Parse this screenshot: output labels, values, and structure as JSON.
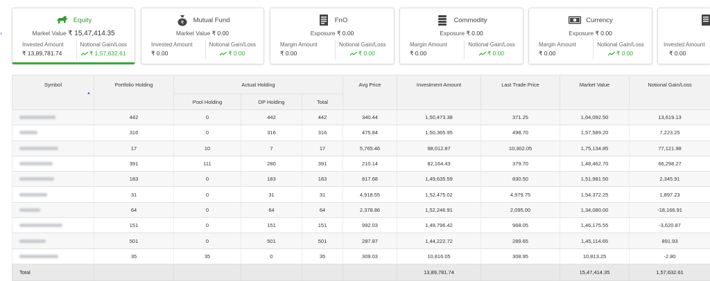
{
  "cards": [
    {
      "key": "equity",
      "title": "Equity",
      "sub_label": "Market Value",
      "sub_value": "₹ 15,47,414.35",
      "left_label": "Invested Amount",
      "left_value": "₹ 13,89,781.74",
      "right_label": "Notional Gain/Loss",
      "right_value": "₹ 1,57,632.61",
      "icon": "bull-icon"
    },
    {
      "key": "mutual_fund",
      "title": "Mutual Fund",
      "sub_label": "Market Value",
      "sub_value": "₹ 0.00",
      "left_label": "Invested Amount",
      "left_value": "₹ 0.00",
      "right_label": "Notional Gain/Loss",
      "right_value": "₹ 0.00",
      "icon": "money-bag-icon"
    },
    {
      "key": "fno",
      "title": "FnO",
      "sub_label": "Exposure",
      "sub_value": "₹ 0.00",
      "left_label": "Margin Amount",
      "left_value": "₹ 0.00",
      "right_label": "Notional Gain/Loss",
      "right_value": "₹ 0.00",
      "icon": "document-icon"
    },
    {
      "key": "commodity",
      "title": "Commodity",
      "sub_label": "Exposure",
      "sub_value": "₹ 0.00",
      "left_label": "Margin Amount",
      "left_value": "₹ 0.00",
      "right_label": "Notional Gain/Loss",
      "right_value": "₹ 0.00",
      "icon": "coin-stack-icon"
    },
    {
      "key": "currency",
      "title": "Currency",
      "sub_label": "Exposure",
      "sub_value": "₹ 0.00",
      "left_label": "Margin Amount",
      "left_value": "₹ 0.00",
      "right_label": "Notional Gain/Loss",
      "right_value": "₹ 0.00",
      "icon": "banknote-icon"
    },
    {
      "key": "partial",
      "title": "",
      "sub_label": "",
      "sub_value": "",
      "left_label": "Invested Amount",
      "left_value": "₹ 0.00",
      "right_label": "",
      "right_value": "",
      "icon": "document-icon"
    }
  ],
  "colors": {
    "gain": "#27b127",
    "accent_green": "#2e9e2e",
    "sort_arrow": "#4a6cc7"
  },
  "table": {
    "headers": {
      "symbol": "Symbol",
      "portfolio_holding": "Portfolio Holding",
      "actual_holding": "Actual Holding",
      "pool_holding": "Pool Holding",
      "dp_holding": "DP Holding",
      "total": "Total",
      "avg_price": "Avg Price",
      "investment_amount": "Investment Amount",
      "last_trade_price": "Last Trade Price",
      "market_value": "Market Value",
      "notional_gain_loss": "Notional Gain/Loss"
    },
    "rows": [
      {
        "portfolio": "442",
        "pool": "0",
        "dp": "442",
        "total": "442",
        "avg": "340.44",
        "invest": "1,50,473.38",
        "ltp": "371.25",
        "mv": "1,64,092.50",
        "gain": "13,619.13"
      },
      {
        "portfolio": "316",
        "pool": "0",
        "dp": "316",
        "total": "316",
        "avg": "475.84",
        "invest": "1,50,365.95",
        "ltp": "498.70",
        "mv": "1,57,589.20",
        "gain": "7,223.25"
      },
      {
        "portfolio": "17",
        "pool": "10",
        "dp": "7",
        "total": "17",
        "avg": "5,765.46",
        "invest": "98,012.87",
        "ltp": "10,302.05",
        "mv": "1,75,134.85",
        "gain": "77,121.98"
      },
      {
        "portfolio": "391",
        "pool": "111",
        "dp": "280",
        "total": "391",
        "avg": "210.14",
        "invest": "82,164.43",
        "ltp": "379.70",
        "mv": "1,48,462.70",
        "gain": "66,298.27"
      },
      {
        "portfolio": "183",
        "pool": "0",
        "dp": "183",
        "total": "183",
        "avg": "817.68",
        "invest": "1,49,635.59",
        "ltp": "830.50",
        "mv": "1,51,981.50",
        "gain": "2,345.91"
      },
      {
        "portfolio": "31",
        "pool": "0",
        "dp": "31",
        "total": "31",
        "avg": "4,918.55",
        "invest": "1,52,475.02",
        "ltp": "4,979.75",
        "mv": "1,54,372.25",
        "gain": "1,897.23"
      },
      {
        "portfolio": "64",
        "pool": "0",
        "dp": "64",
        "total": "64",
        "avg": "2,378.86",
        "invest": "1,52,246.91",
        "ltp": "2,095.00",
        "mv": "1,34,080.00",
        "gain": "-18,166.91"
      },
      {
        "portfolio": "151",
        "pool": "0",
        "dp": "151",
        "total": "151",
        "avg": "992.03",
        "invest": "1,49,796.42",
        "ltp": "968.05",
        "mv": "1,46,175.55",
        "gain": "-3,620.87"
      },
      {
        "portfolio": "501",
        "pool": "0",
        "dp": "501",
        "total": "501",
        "avg": "287.87",
        "invest": "1,44,222.72",
        "ltp": "289.65",
        "mv": "1,45,114.65",
        "gain": "891.93"
      },
      {
        "portfolio": "35",
        "pool": "35",
        "dp": "0",
        "total": "35",
        "avg": "309.03",
        "invest": "10,816.05",
        "ltp": "308.95",
        "mv": "10,813.25",
        "gain": "-2.80"
      }
    ],
    "footer": {
      "label": "Total",
      "invest": "13,89,781.74",
      "mv": "15,47,414.35",
      "gain": "1,57,632.61"
    }
  }
}
